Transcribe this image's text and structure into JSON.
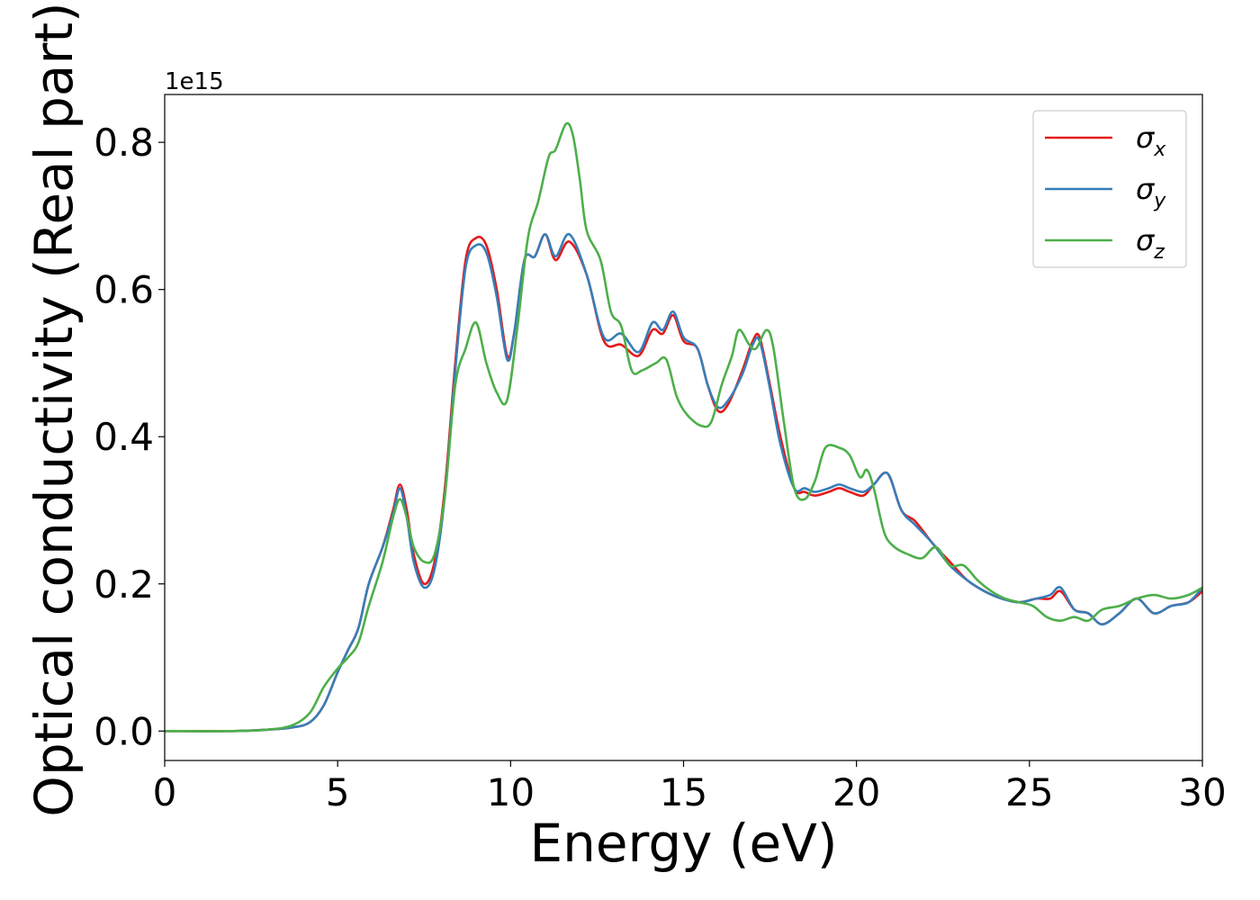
{
  "chart_data": {
    "type": "line",
    "xlabel": "Energy (eV)",
    "ylabel": "Optical conductivity (Real part)",
    "y_offset_label": "1e15",
    "y_scale": 1000000000000000.0,
    "xlim": [
      0,
      30
    ],
    "ylim": [
      -0.04,
      0.865
    ],
    "x_ticks": [
      0,
      5,
      10,
      15,
      20,
      25,
      30
    ],
    "y_ticks": [
      0.0,
      0.2,
      0.4,
      0.6,
      0.8
    ],
    "x_tick_labels": [
      "0",
      "5",
      "10",
      "15",
      "20",
      "25",
      "30"
    ],
    "y_tick_labels": [
      "0.0",
      "0.2",
      "0.4",
      "0.6",
      "0.8"
    ],
    "grid": false,
    "legend": "top-right",
    "series": [
      {
        "name": "σx",
        "label_base": "σ",
        "label_sub": "x",
        "color": "#e41a1c",
        "points": [
          [
            0,
            0
          ],
          [
            2,
            0
          ],
          [
            3,
            0.002
          ],
          [
            3.7,
            0.005
          ],
          [
            4.2,
            0.012
          ],
          [
            4.6,
            0.035
          ],
          [
            5,
            0.08
          ],
          [
            5.3,
            0.11
          ],
          [
            5.6,
            0.14
          ],
          [
            5.9,
            0.2
          ],
          [
            6.3,
            0.25
          ],
          [
            6.6,
            0.3
          ],
          [
            6.8,
            0.335
          ],
          [
            7,
            0.3
          ],
          [
            7.2,
            0.24
          ],
          [
            7.5,
            0.2
          ],
          [
            7.8,
            0.23
          ],
          [
            8.1,
            0.33
          ],
          [
            8.4,
            0.5
          ],
          [
            8.7,
            0.64
          ],
          [
            9,
            0.67
          ],
          [
            9.3,
            0.66
          ],
          [
            9.6,
            0.6
          ],
          [
            9.9,
            0.51
          ],
          [
            10.1,
            0.54
          ],
          [
            10.4,
            0.64
          ],
          [
            10.7,
            0.645
          ],
          [
            11,
            0.675
          ],
          [
            11.3,
            0.64
          ],
          [
            11.7,
            0.665
          ],
          [
            12.2,
            0.62
          ],
          [
            12.7,
            0.53
          ],
          [
            13.2,
            0.525
          ],
          [
            13.7,
            0.51
          ],
          [
            14.1,
            0.545
          ],
          [
            14.4,
            0.54
          ],
          [
            14.7,
            0.565
          ],
          [
            15,
            0.53
          ],
          [
            15.4,
            0.52
          ],
          [
            15.7,
            0.47
          ],
          [
            16,
            0.435
          ],
          [
            16.3,
            0.445
          ],
          [
            16.7,
            0.49
          ],
          [
            17,
            0.53
          ],
          [
            17.2,
            0.535
          ],
          [
            17.5,
            0.47
          ],
          [
            17.8,
            0.4
          ],
          [
            18.2,
            0.33
          ],
          [
            18.5,
            0.325
          ],
          [
            18.8,
            0.32
          ],
          [
            19.2,
            0.325
          ],
          [
            19.5,
            0.33
          ],
          [
            19.8,
            0.325
          ],
          [
            20.2,
            0.32
          ],
          [
            20.5,
            0.335
          ],
          [
            20.9,
            0.35
          ],
          [
            21.3,
            0.3
          ],
          [
            21.7,
            0.285
          ],
          [
            22.2,
            0.255
          ],
          [
            22.7,
            0.23
          ],
          [
            23.2,
            0.205
          ],
          [
            23.7,
            0.19
          ],
          [
            24.2,
            0.18
          ],
          [
            24.7,
            0.175
          ],
          [
            25.2,
            0.18
          ],
          [
            25.6,
            0.18
          ],
          [
            25.9,
            0.19
          ],
          [
            26.3,
            0.165
          ],
          [
            26.7,
            0.16
          ],
          [
            27.1,
            0.145
          ],
          [
            27.6,
            0.16
          ],
          [
            28.1,
            0.18
          ],
          [
            28.6,
            0.16
          ],
          [
            29.1,
            0.17
          ],
          [
            29.6,
            0.175
          ],
          [
            30,
            0.19
          ]
        ]
      },
      {
        "name": "σy",
        "label_base": "σ",
        "label_sub": "y",
        "color": "#377eb8",
        "points": [
          [
            0,
            0
          ],
          [
            2,
            0
          ],
          [
            3,
            0.002
          ],
          [
            3.7,
            0.005
          ],
          [
            4.2,
            0.012
          ],
          [
            4.6,
            0.035
          ],
          [
            5,
            0.08
          ],
          [
            5.3,
            0.11
          ],
          [
            5.6,
            0.14
          ],
          [
            5.9,
            0.2
          ],
          [
            6.3,
            0.25
          ],
          [
            6.6,
            0.295
          ],
          [
            6.8,
            0.33
          ],
          [
            7,
            0.29
          ],
          [
            7.2,
            0.23
          ],
          [
            7.5,
            0.195
          ],
          [
            7.8,
            0.22
          ],
          [
            8.1,
            0.32
          ],
          [
            8.4,
            0.49
          ],
          [
            8.7,
            0.63
          ],
          [
            9,
            0.66
          ],
          [
            9.3,
            0.65
          ],
          [
            9.6,
            0.59
          ],
          [
            9.9,
            0.505
          ],
          [
            10.1,
            0.54
          ],
          [
            10.4,
            0.64
          ],
          [
            10.7,
            0.645
          ],
          [
            11,
            0.675
          ],
          [
            11.3,
            0.645
          ],
          [
            11.7,
            0.675
          ],
          [
            12.2,
            0.62
          ],
          [
            12.7,
            0.535
          ],
          [
            13.2,
            0.54
          ],
          [
            13.7,
            0.515
          ],
          [
            14.1,
            0.555
          ],
          [
            14.4,
            0.545
          ],
          [
            14.7,
            0.57
          ],
          [
            15,
            0.535
          ],
          [
            15.4,
            0.52
          ],
          [
            15.7,
            0.47
          ],
          [
            16,
            0.44
          ],
          [
            16.3,
            0.45
          ],
          [
            16.7,
            0.485
          ],
          [
            17,
            0.525
          ],
          [
            17.2,
            0.53
          ],
          [
            17.5,
            0.465
          ],
          [
            17.8,
            0.39
          ],
          [
            18.2,
            0.33
          ],
          [
            18.5,
            0.33
          ],
          [
            18.8,
            0.325
          ],
          [
            19.2,
            0.33
          ],
          [
            19.5,
            0.335
          ],
          [
            19.8,
            0.33
          ],
          [
            20.2,
            0.325
          ],
          [
            20.5,
            0.335
          ],
          [
            20.9,
            0.35
          ],
          [
            21.3,
            0.3
          ],
          [
            21.7,
            0.28
          ],
          [
            22.2,
            0.255
          ],
          [
            22.7,
            0.225
          ],
          [
            23.2,
            0.205
          ],
          [
            23.7,
            0.19
          ],
          [
            24.2,
            0.18
          ],
          [
            24.7,
            0.175
          ],
          [
            25.2,
            0.18
          ],
          [
            25.6,
            0.185
          ],
          [
            25.9,
            0.195
          ],
          [
            26.3,
            0.165
          ],
          [
            26.7,
            0.16
          ],
          [
            27.1,
            0.145
          ],
          [
            27.6,
            0.16
          ],
          [
            28.1,
            0.18
          ],
          [
            28.6,
            0.16
          ],
          [
            29.1,
            0.17
          ],
          [
            29.6,
            0.175
          ],
          [
            30,
            0.195
          ]
        ]
      },
      {
        "name": "σz",
        "label_base": "σ",
        "label_sub": "z",
        "color": "#4daf4a",
        "points": [
          [
            0,
            0
          ],
          [
            2,
            0
          ],
          [
            3,
            0.002
          ],
          [
            3.7,
            0.008
          ],
          [
            4.2,
            0.025
          ],
          [
            4.6,
            0.06
          ],
          [
            5,
            0.085
          ],
          [
            5.3,
            0.1
          ],
          [
            5.6,
            0.12
          ],
          [
            5.9,
            0.17
          ],
          [
            6.3,
            0.23
          ],
          [
            6.6,
            0.29
          ],
          [
            6.8,
            0.315
          ],
          [
            7,
            0.29
          ],
          [
            7.2,
            0.25
          ],
          [
            7.5,
            0.23
          ],
          [
            7.8,
            0.24
          ],
          [
            8.1,
            0.32
          ],
          [
            8.4,
            0.47
          ],
          [
            8.7,
            0.52
          ],
          [
            9,
            0.555
          ],
          [
            9.3,
            0.5
          ],
          [
            9.6,
            0.46
          ],
          [
            9.9,
            0.45
          ],
          [
            10.2,
            0.55
          ],
          [
            10.5,
            0.67
          ],
          [
            10.8,
            0.72
          ],
          [
            11.1,
            0.78
          ],
          [
            11.3,
            0.79
          ],
          [
            11.6,
            0.825
          ],
          [
            11.8,
            0.81
          ],
          [
            12,
            0.75
          ],
          [
            12.2,
            0.68
          ],
          [
            12.6,
            0.64
          ],
          [
            12.9,
            0.57
          ],
          [
            13.2,
            0.55
          ],
          [
            13.5,
            0.49
          ],
          [
            13.8,
            0.49
          ],
          [
            14.2,
            0.5
          ],
          [
            14.5,
            0.505
          ],
          [
            14.8,
            0.455
          ],
          [
            15.1,
            0.43
          ],
          [
            15.5,
            0.415
          ],
          [
            15.8,
            0.42
          ],
          [
            16.1,
            0.47
          ],
          [
            16.4,
            0.51
          ],
          [
            16.6,
            0.545
          ],
          [
            16.9,
            0.525
          ],
          [
            17.1,
            0.52
          ],
          [
            17.4,
            0.545
          ],
          [
            17.6,
            0.52
          ],
          [
            17.9,
            0.42
          ],
          [
            18.2,
            0.33
          ],
          [
            18.5,
            0.315
          ],
          [
            18.8,
            0.34
          ],
          [
            19.1,
            0.385
          ],
          [
            19.5,
            0.385
          ],
          [
            19.8,
            0.375
          ],
          [
            20.1,
            0.345
          ],
          [
            20.3,
            0.355
          ],
          [
            20.5,
            0.33
          ],
          [
            20.8,
            0.27
          ],
          [
            21.1,
            0.25
          ],
          [
            21.5,
            0.24
          ],
          [
            21.9,
            0.235
          ],
          [
            22.3,
            0.25
          ],
          [
            22.7,
            0.225
          ],
          [
            23.1,
            0.225
          ],
          [
            23.5,
            0.205
          ],
          [
            23.9,
            0.19
          ],
          [
            24.3,
            0.18
          ],
          [
            24.7,
            0.175
          ],
          [
            25.1,
            0.17
          ],
          [
            25.5,
            0.155
          ],
          [
            25.9,
            0.15
          ],
          [
            26.3,
            0.155
          ],
          [
            26.7,
            0.15
          ],
          [
            27.1,
            0.165
          ],
          [
            27.6,
            0.17
          ],
          [
            28.1,
            0.18
          ],
          [
            28.6,
            0.185
          ],
          [
            29.1,
            0.18
          ],
          [
            29.6,
            0.185
          ],
          [
            30,
            0.195
          ]
        ]
      }
    ]
  }
}
